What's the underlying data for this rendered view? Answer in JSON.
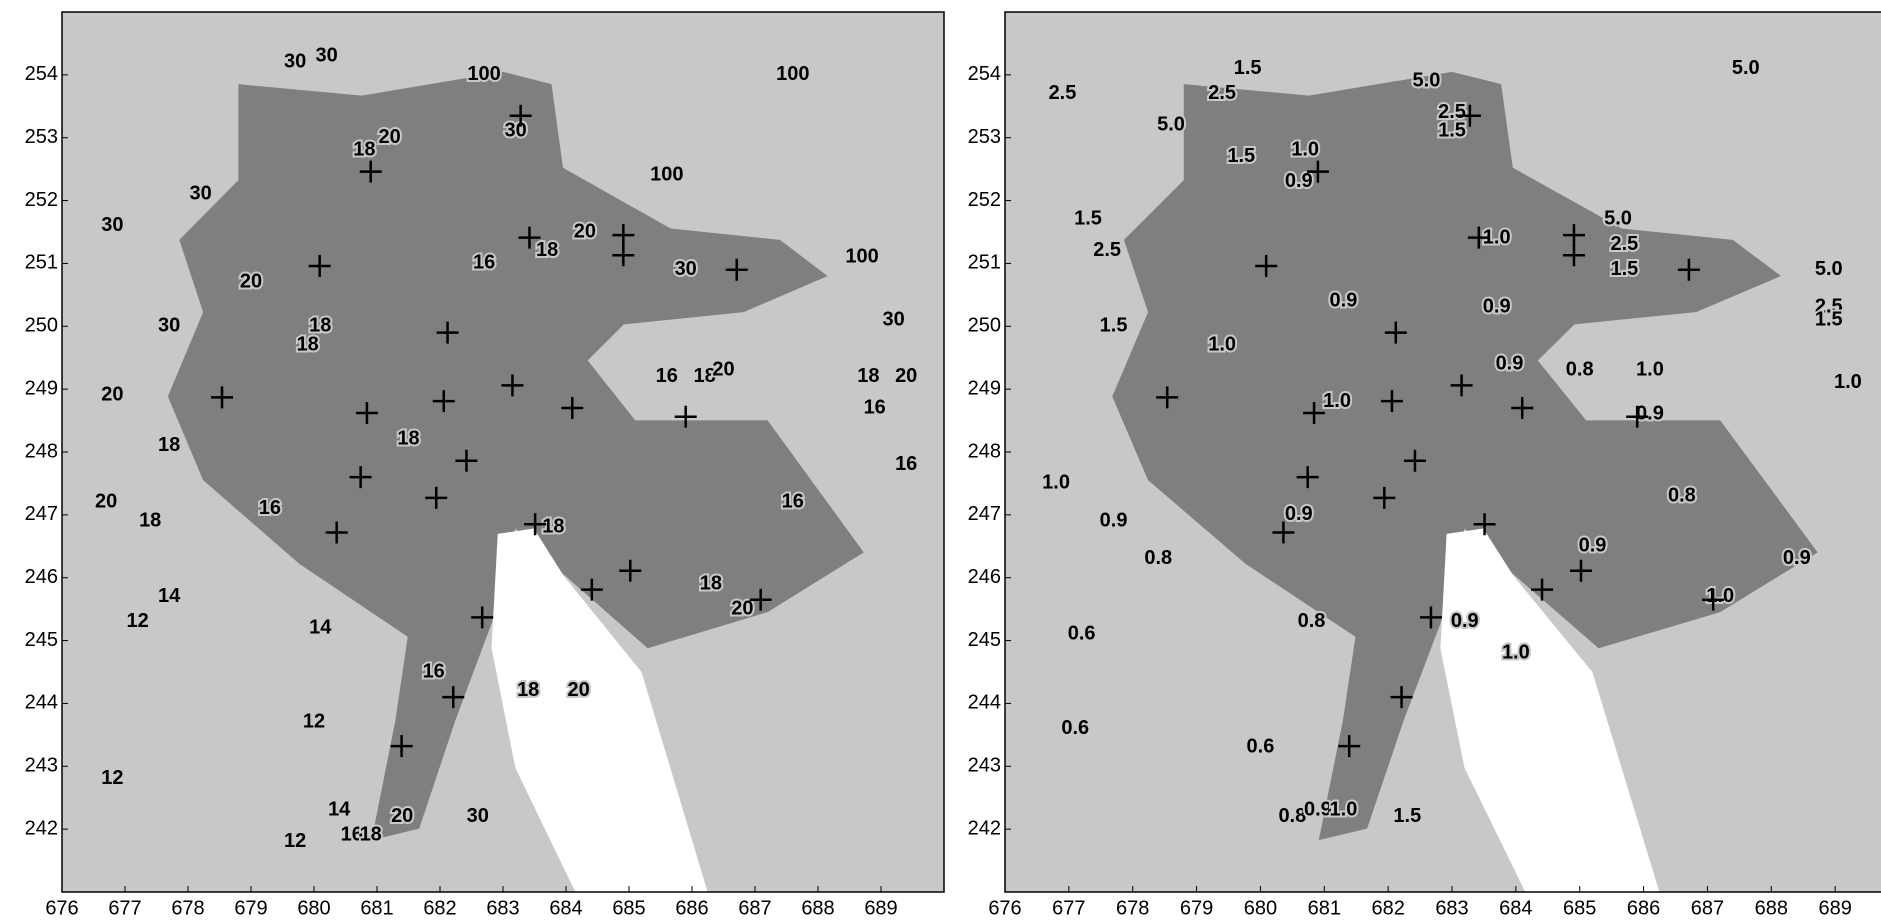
{
  "chart_data": [
    {
      "type": "contour",
      "xlim": [
        676,
        690
      ],
      "ylim": [
        241,
        255
      ],
      "xticks": [
        676,
        677,
        678,
        679,
        680,
        681,
        682,
        683,
        684,
        685,
        686,
        687,
        688,
        689
      ],
      "yticks": [
        242,
        243,
        244,
        245,
        246,
        247,
        248,
        249,
        250,
        251,
        252,
        253,
        254
      ],
      "sites": [
        {
          "x": 683.28,
          "y": 253.35
        },
        {
          "x": 680.9,
          "y": 252.46
        },
        {
          "x": 683.42,
          "y": 251.41
        },
        {
          "x": 684.91,
          "y": 251.45
        },
        {
          "x": 684.91,
          "y": 251.13
        },
        {
          "x": 686.71,
          "y": 250.9
        },
        {
          "x": 680.09,
          "y": 250.96
        },
        {
          "x": 682.12,
          "y": 249.9
        },
        {
          "x": 683.15,
          "y": 249.06
        },
        {
          "x": 678.54,
          "y": 248.87
        },
        {
          "x": 680.84,
          "y": 248.62
        },
        {
          "x": 682.06,
          "y": 248.81
        },
        {
          "x": 684.1,
          "y": 248.7
        },
        {
          "x": 685.9,
          "y": 248.56
        },
        {
          "x": 682.42,
          "y": 247.86
        },
        {
          "x": 680.74,
          "y": 247.6
        },
        {
          "x": 681.94,
          "y": 247.27
        },
        {
          "x": 680.36,
          "y": 246.72
        },
        {
          "x": 683.51,
          "y": 246.85
        },
        {
          "x": 685.02,
          "y": 246.11
        },
        {
          "x": 684.41,
          "y": 245.81
        },
        {
          "x": 687.09,
          "y": 245.65
        },
        {
          "x": 682.67,
          "y": 245.37
        },
        {
          "x": 682.21,
          "y": 244.1
        },
        {
          "x": 681.39,
          "y": 243.32
        }
      ],
      "contour_labels": [
        {
          "label": "30",
          "x": 679.7,
          "y": 254.2
        },
        {
          "label": "30",
          "x": 680.2,
          "y": 254.3
        },
        {
          "label": "100",
          "x": 682.7,
          "y": 254.0
        },
        {
          "label": "100",
          "x": 687.6,
          "y": 254.0
        },
        {
          "label": "30",
          "x": 683.2,
          "y": 253.1
        },
        {
          "label": "20",
          "x": 681.2,
          "y": 253.0
        },
        {
          "label": "18",
          "x": 680.8,
          "y": 252.8
        },
        {
          "label": "100",
          "x": 685.6,
          "y": 252.4
        },
        {
          "label": "30",
          "x": 678.2,
          "y": 252.1
        },
        {
          "label": "30",
          "x": 676.8,
          "y": 251.6
        },
        {
          "label": "20",
          "x": 684.3,
          "y": 251.5
        },
        {
          "label": "18",
          "x": 683.7,
          "y": 251.2
        },
        {
          "label": "16",
          "x": 682.7,
          "y": 251.0
        },
        {
          "label": "30",
          "x": 685.9,
          "y": 250.9
        },
        {
          "label": "100",
          "x": 688.7,
          "y": 251.1
        },
        {
          "label": "20",
          "x": 679.0,
          "y": 250.7
        },
        {
          "label": "30",
          "x": 677.7,
          "y": 250.0
        },
        {
          "label": "18",
          "x": 680.1,
          "y": 250.0
        },
        {
          "label": "30",
          "x": 689.2,
          "y": 250.1
        },
        {
          "label": "18",
          "x": 679.9,
          "y": 249.7
        },
        {
          "label": "16",
          "x": 685.6,
          "y": 249.2
        },
        {
          "label": "18",
          "x": 686.2,
          "y": 249.2
        },
        {
          "label": "20",
          "x": 686.5,
          "y": 249.3
        },
        {
          "label": "18",
          "x": 688.8,
          "y": 249.2
        },
        {
          "label": "20",
          "x": 689.4,
          "y": 249.2
        },
        {
          "label": "16",
          "x": 688.9,
          "y": 248.7
        },
        {
          "label": "20",
          "x": 676.8,
          "y": 248.9
        },
        {
          "label": "18",
          "x": 681.5,
          "y": 248.2
        },
        {
          "label": "18",
          "x": 677.7,
          "y": 248.1
        },
        {
          "label": "16",
          "x": 689.4,
          "y": 247.8
        },
        {
          "label": "20",
          "x": 676.7,
          "y": 247.2
        },
        {
          "label": "16",
          "x": 679.3,
          "y": 247.1
        },
        {
          "label": "18",
          "x": 677.4,
          "y": 246.9
        },
        {
          "label": "18",
          "x": 683.8,
          "y": 246.8
        },
        {
          "label": "16",
          "x": 687.6,
          "y": 247.2
        },
        {
          "label": "14",
          "x": 677.7,
          "y": 245.7
        },
        {
          "label": "18",
          "x": 686.3,
          "y": 245.9
        },
        {
          "label": "20",
          "x": 686.8,
          "y": 245.5
        },
        {
          "label": "12",
          "x": 677.2,
          "y": 245.3
        },
        {
          "label": "14",
          "x": 680.1,
          "y": 245.2
        },
        {
          "label": "16",
          "x": 681.9,
          "y": 244.5
        },
        {
          "label": "18",
          "x": 683.4,
          "y": 244.2
        },
        {
          "label": "20",
          "x": 684.2,
          "y": 244.2
        },
        {
          "label": "12",
          "x": 680.0,
          "y": 243.7
        },
        {
          "label": "12",
          "x": 676.8,
          "y": 242.8
        },
        {
          "label": "14",
          "x": 680.4,
          "y": 242.3
        },
        {
          "label": "12",
          "x": 679.7,
          "y": 241.8
        },
        {
          "label": "16",
          "x": 680.6,
          "y": 241.9
        },
        {
          "label": "18",
          "x": 680.9,
          "y": 241.9
        },
        {
          "label": "20",
          "x": 681.4,
          "y": 242.2
        },
        {
          "label": "30",
          "x": 682.6,
          "y": 242.2
        }
      ]
    },
    {
      "type": "contour",
      "xlim": [
        676,
        690
      ],
      "ylim": [
        241,
        255
      ],
      "xticks": [
        676,
        677,
        678,
        679,
        680,
        681,
        682,
        683,
        684,
        685,
        686,
        687,
        688,
        689
      ],
      "yticks": [
        242,
        243,
        244,
        245,
        246,
        247,
        248,
        249,
        250,
        251,
        252,
        253,
        254
      ],
      "sites": [
        {
          "x": 683.28,
          "y": 253.35
        },
        {
          "x": 680.9,
          "y": 252.46
        },
        {
          "x": 683.42,
          "y": 251.41
        },
        {
          "x": 684.91,
          "y": 251.45
        },
        {
          "x": 684.91,
          "y": 251.13
        },
        {
          "x": 686.71,
          "y": 250.9
        },
        {
          "x": 680.09,
          "y": 250.96
        },
        {
          "x": 682.12,
          "y": 249.9
        },
        {
          "x": 683.15,
          "y": 249.06
        },
        {
          "x": 678.54,
          "y": 248.87
        },
        {
          "x": 680.84,
          "y": 248.62
        },
        {
          "x": 682.06,
          "y": 248.81
        },
        {
          "x": 684.1,
          "y": 248.7
        },
        {
          "x": 685.9,
          "y": 248.56
        },
        {
          "x": 682.42,
          "y": 247.86
        },
        {
          "x": 680.74,
          "y": 247.6
        },
        {
          "x": 681.94,
          "y": 247.27
        },
        {
          "x": 680.36,
          "y": 246.72
        },
        {
          "x": 683.51,
          "y": 246.85
        },
        {
          "x": 685.02,
          "y": 246.11
        },
        {
          "x": 684.41,
          "y": 245.81
        },
        {
          "x": 687.09,
          "y": 245.65
        },
        {
          "x": 682.67,
          "y": 245.37
        },
        {
          "x": 682.21,
          "y": 244.1
        },
        {
          "x": 681.39,
          "y": 243.32
        }
      ],
      "contour_labels": [
        {
          "label": "1.5",
          "x": 679.8,
          "y": 254.1
        },
        {
          "label": "2.5",
          "x": 679.4,
          "y": 253.7
        },
        {
          "label": "5.0",
          "x": 682.6,
          "y": 253.9
        },
        {
          "label": "5.0",
          "x": 687.6,
          "y": 254.1
        },
        {
          "label": "2.5",
          "x": 676.9,
          "y": 253.7
        },
        {
          "label": "5.0",
          "x": 678.6,
          "y": 253.2
        },
        {
          "label": "2.5",
          "x": 683.0,
          "y": 253.4
        },
        {
          "label": "1.5",
          "x": 683.0,
          "y": 253.1
        },
        {
          "label": "1.5",
          "x": 679.7,
          "y": 252.7
        },
        {
          "label": "1.0",
          "x": 680.7,
          "y": 252.8
        },
        {
          "label": "0.9",
          "x": 680.6,
          "y": 252.3
        },
        {
          "label": "1.5",
          "x": 677.3,
          "y": 251.7
        },
        {
          "label": "5.0",
          "x": 685.6,
          "y": 251.7
        },
        {
          "label": "2.5",
          "x": 685.7,
          "y": 251.3
        },
        {
          "label": "1.5",
          "x": 685.7,
          "y": 250.9
        },
        {
          "label": "1.0",
          "x": 683.7,
          "y": 251.4
        },
        {
          "label": "2.5",
          "x": 677.6,
          "y": 251.2
        },
        {
          "label": "5.0",
          "x": 688.9,
          "y": 250.9
        },
        {
          "label": "2.5",
          "x": 688.9,
          "y": 250.3
        },
        {
          "label": "1.5",
          "x": 688.9,
          "y": 250.1
        },
        {
          "label": "0.9",
          "x": 681.3,
          "y": 250.4
        },
        {
          "label": "0.9",
          "x": 683.7,
          "y": 250.3
        },
        {
          "label": "1.5",
          "x": 677.7,
          "y": 250.0
        },
        {
          "label": "1.0",
          "x": 679.4,
          "y": 249.7
        },
        {
          "label": "0.9",
          "x": 683.9,
          "y": 249.4
        },
        {
          "label": "0.8",
          "x": 685.0,
          "y": 249.3
        },
        {
          "label": "1.0",
          "x": 686.1,
          "y": 249.3
        },
        {
          "label": "0.9",
          "x": 686.1,
          "y": 248.6
        },
        {
          "label": "1.0",
          "x": 681.2,
          "y": 248.8
        },
        {
          "label": "1.0",
          "x": 689.2,
          "y": 249.1
        },
        {
          "label": "1.0",
          "x": 676.8,
          "y": 247.5
        },
        {
          "label": "0.9",
          "x": 677.7,
          "y": 246.9
        },
        {
          "label": "0.9",
          "x": 680.6,
          "y": 247.0
        },
        {
          "label": "0.8",
          "x": 686.6,
          "y": 247.3
        },
        {
          "label": "0.8",
          "x": 678.4,
          "y": 246.3
        },
        {
          "label": "0.9",
          "x": 685.2,
          "y": 246.5
        },
        {
          "label": "0.9",
          "x": 688.4,
          "y": 246.3
        },
        {
          "label": "1.0",
          "x": 687.2,
          "y": 245.7
        },
        {
          "label": "0.8",
          "x": 680.8,
          "y": 245.3
        },
        {
          "label": "0.9",
          "x": 683.2,
          "y": 245.3
        },
        {
          "label": "0.6",
          "x": 677.2,
          "y": 245.1
        },
        {
          "label": "1.0",
          "x": 684.0,
          "y": 244.8
        },
        {
          "label": "0.6",
          "x": 677.1,
          "y": 243.6
        },
        {
          "label": "0.6",
          "x": 680.0,
          "y": 243.3
        },
        {
          "label": "1.5",
          "x": 682.3,
          "y": 242.2
        },
        {
          "label": "0.8",
          "x": 680.5,
          "y": 242.2
        },
        {
          "label": "0.9",
          "x": 680.9,
          "y": 242.3
        },
        {
          "label": "1.0",
          "x": 681.3,
          "y": 242.3
        }
      ]
    }
  ]
}
